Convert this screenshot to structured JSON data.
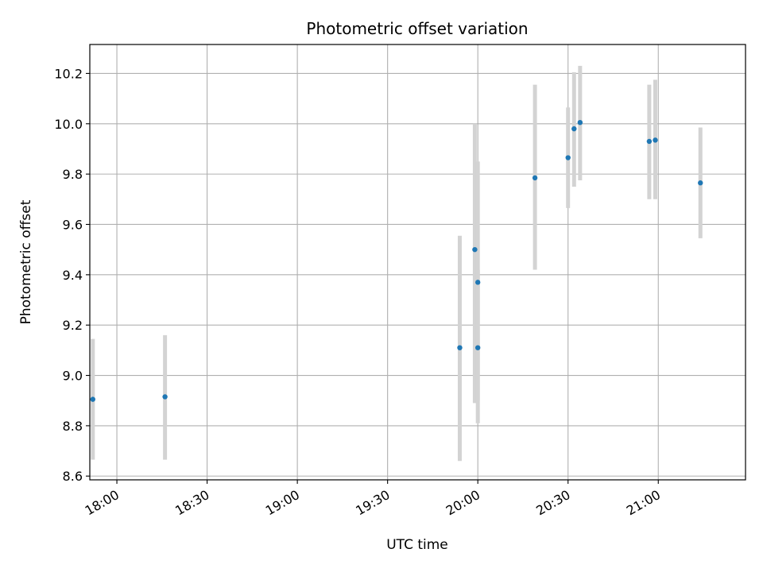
{
  "chart_data": {
    "type": "scatter",
    "title": "Photometric offset variation",
    "xlabel": "UTC time",
    "ylabel": "Photometric offset",
    "x_ticks": [
      "18:00",
      "18:30",
      "19:00",
      "19:30",
      "20:00",
      "20:30",
      "21:00"
    ],
    "y_ticks": [
      "8.6",
      "8.8",
      "9.0",
      "9.2",
      "9.4",
      "9.6",
      "9.8",
      "10.0",
      "10.2"
    ],
    "xlim": [
      "17:51",
      "21:29"
    ],
    "ylim": [
      8.585,
      10.315
    ],
    "grid": true,
    "colors": {
      "points": "#1f77b4",
      "errorbars": "#d3d3d3",
      "grid": "#b0b0b0"
    },
    "points": [
      {
        "time": "17:52",
        "value": 8.905,
        "low": 8.665,
        "high": 9.145
      },
      {
        "time": "18:16",
        "value": 8.915,
        "low": 8.665,
        "high": 9.16
      },
      {
        "time": "19:54",
        "value": 9.11,
        "low": 8.66,
        "high": 9.555
      },
      {
        "time": "19:59",
        "value": 9.5,
        "low": 8.89,
        "high": 10.0
      },
      {
        "time": "20:00",
        "value": 9.37,
        "low": 8.9,
        "high": 9.85
      },
      {
        "time": "20:00",
        "value": 9.11,
        "low": 8.81,
        "high": 9.42
      },
      {
        "time": "20:19",
        "value": 9.785,
        "low": 9.42,
        "high": 10.155
      },
      {
        "time": "20:30",
        "value": 9.865,
        "low": 9.665,
        "high": 10.065
      },
      {
        "time": "20:32",
        "value": 9.98,
        "low": 9.75,
        "high": 10.205
      },
      {
        "time": "20:34",
        "value": 10.005,
        "low": 9.775,
        "high": 10.23
      },
      {
        "time": "20:57",
        "value": 9.93,
        "low": 9.7,
        "high": 10.155
      },
      {
        "time": "20:59",
        "value": 9.935,
        "low": 9.7,
        "high": 10.175
      },
      {
        "time": "21:14",
        "value": 9.765,
        "low": 9.545,
        "high": 9.985
      }
    ]
  }
}
